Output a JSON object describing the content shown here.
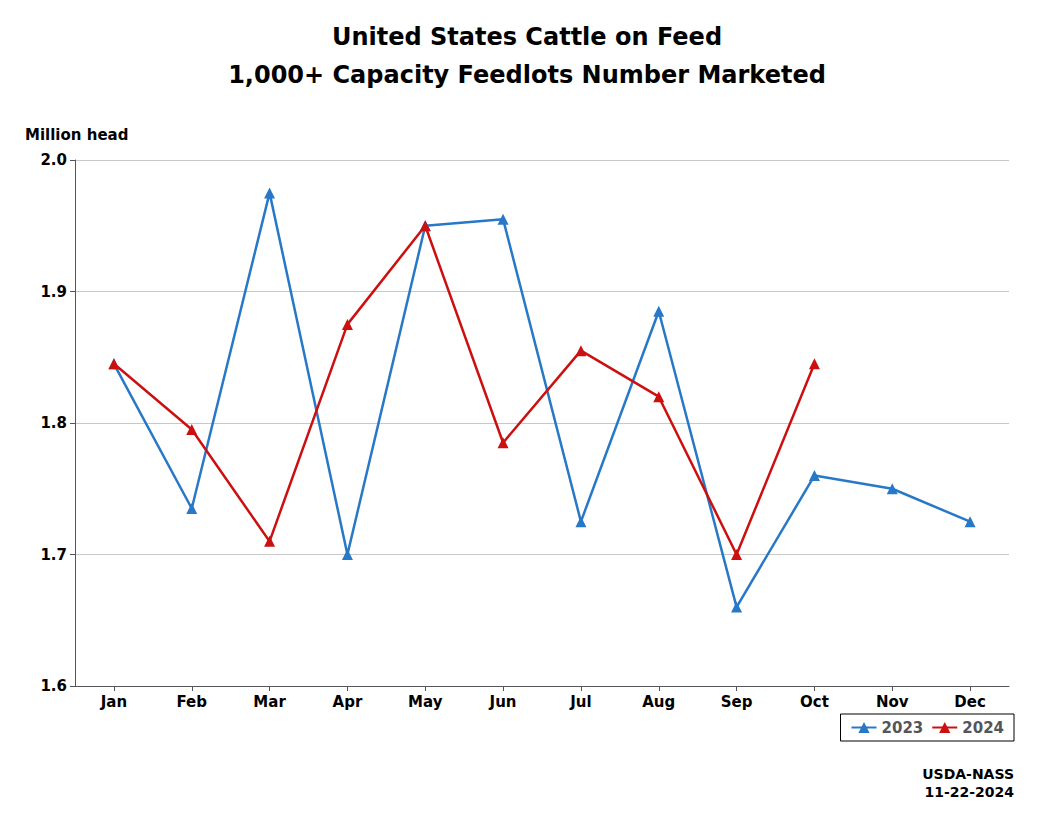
{
  "chart_data": {
    "type": "line",
    "title": "United States Cattle on Feed",
    "subtitle": "1,000+ Capacity Feedlots Number Marketed",
    "ylabel": "Million head",
    "annotation": "USDA-NASS\n11-22-2024",
    "categories": [
      "Jan",
      "Feb",
      "Mar",
      "Apr",
      "May",
      "Jun",
      "Jul",
      "Aug",
      "Sep",
      "Oct",
      "Nov",
      "Dec"
    ],
    "series": [
      {
        "name": "2023",
        "color": "#2878c8",
        "marker": "triangle",
        "values": [
          1.845,
          1.735,
          1.975,
          1.7,
          1.95,
          1.955,
          1.725,
          1.885,
          1.66,
          1.76,
          1.75,
          1.725
        ]
      },
      {
        "name": "2024",
        "color": "#cc1010",
        "marker": "triangle",
        "values": [
          1.845,
          1.795,
          1.71,
          1.875,
          1.95,
          1.785,
          1.855,
          1.82,
          1.7,
          1.845,
          null,
          null
        ]
      }
    ],
    "ylim": [
      1.6,
      2.0
    ],
    "yticks": [
      1.6,
      1.7,
      1.8,
      1.9,
      {
        "value": 2.0,
        "label": "2.0"
      }
    ],
    "grid": true,
    "legend": "lower right"
  }
}
